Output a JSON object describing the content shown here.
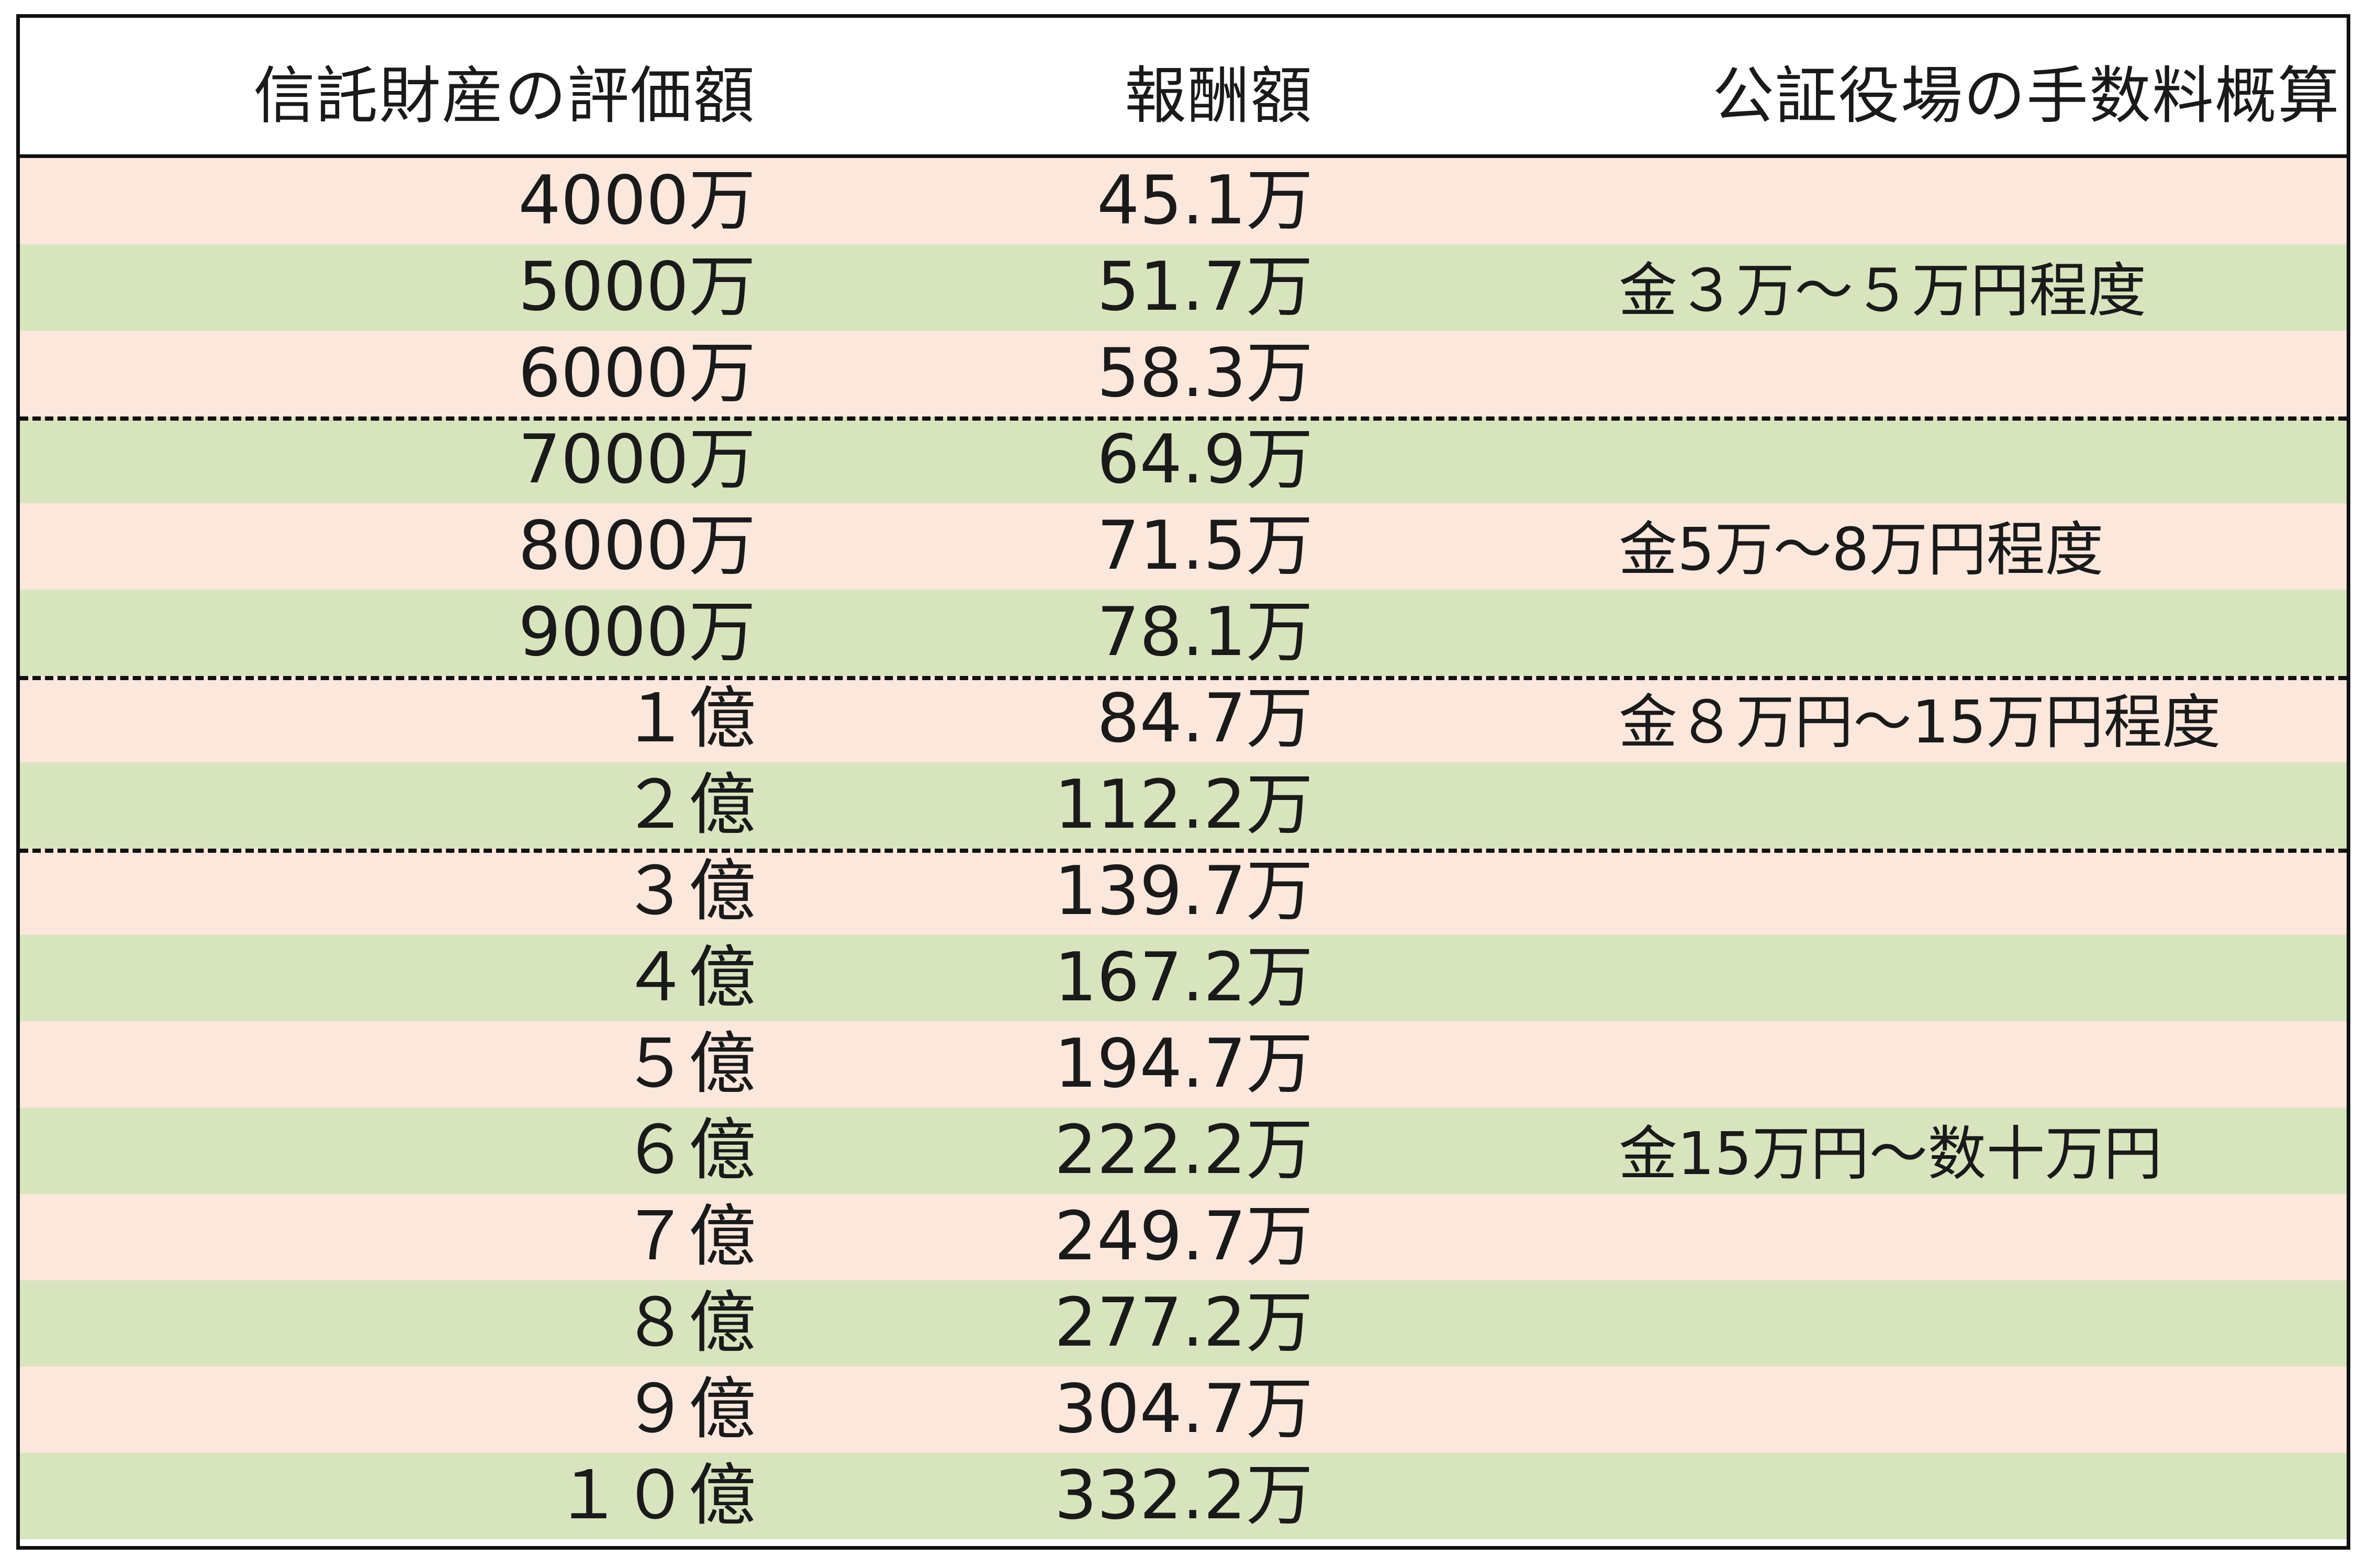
{
  "colors": {
    "row_pink": "#fbe7dc",
    "row_green": "#d8e4bd",
    "border": "#111111"
  },
  "headers": {
    "asset_value": "信託財産の評価額",
    "fee": "報酬額",
    "notary_fee": "公証役場の手数料概算"
  },
  "rows": [
    {
      "asset": "4000万",
      "fee": "45.1万"
    },
    {
      "asset": "5000万",
      "fee": "51.7万"
    },
    {
      "asset": "6000万",
      "fee": "58.3万"
    },
    {
      "asset": "7000万",
      "fee": "64.9万"
    },
    {
      "asset": "8000万",
      "fee": "71.5万"
    },
    {
      "asset": "9000万",
      "fee": "78.1万"
    },
    {
      "asset": "１億",
      "fee": "84.7万"
    },
    {
      "asset": "２億",
      "fee": "112.2万"
    },
    {
      "asset": "３億",
      "fee": "139.7万"
    },
    {
      "asset": "４億",
      "fee": "167.2万"
    },
    {
      "asset": "５億",
      "fee": "194.7万"
    },
    {
      "asset": "６億",
      "fee": "222.2万"
    },
    {
      "asset": "７億",
      "fee": "249.7万"
    },
    {
      "asset": "８億",
      "fee": "277.2万"
    },
    {
      "asset": "９億",
      "fee": "304.7万"
    },
    {
      "asset": "１０億",
      "fee": "332.2万"
    }
  ],
  "notary_groups": [
    {
      "label": "金３万～５万円程度"
    },
    {
      "label": "金5万～8万円程度"
    },
    {
      "label": "金８万円～15万円程度"
    },
    {
      "label": "金15万円～数十万円"
    }
  ]
}
